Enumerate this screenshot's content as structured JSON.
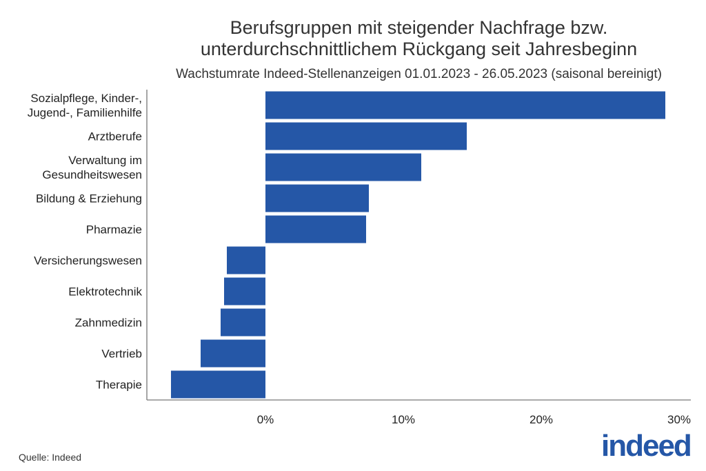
{
  "chart_data": {
    "type": "bar",
    "orientation": "horizontal",
    "title": "Berufsgruppen mit steigender Nachfrage bzw. unterdurchschnittlichem Rückgang seit Jahresbeginn",
    "title_lines": [
      "Berufsgruppen mit steigender Nachfrage bzw.",
      "unterdurchschnittlichem Rückgang seit Jahresbeginn"
    ],
    "subtitle": "Wachstumrate Indeed-Stellenanzeigen 01.01.2023 - 26.05.2023 (saisonal bereinigt)",
    "categories": [
      [
        "Sozialpflege, Kinder-,",
        "Jugend-, Familienhilfe"
      ],
      [
        "Arztberufe"
      ],
      [
        "Verwaltung im",
        "Gesundheitswesen"
      ],
      [
        "Bildung & Erziehung"
      ],
      [
        "Pharmazie"
      ],
      [
        "Versicherungswesen"
      ],
      [
        "Elektrotechnik"
      ],
      [
        "Zahnmedizin"
      ],
      [
        "Vertrieb"
      ],
      [
        "Therapie"
      ]
    ],
    "values": [
      29.0,
      14.6,
      11.3,
      7.5,
      7.3,
      -2.8,
      -3.0,
      -3.25,
      -4.7,
      -6.85
    ],
    "unit": "%",
    "xlim": [
      -8.6,
      30.85
    ],
    "xticks": [
      0,
      10,
      20,
      30
    ],
    "xtick_labels": [
      "0%",
      "10%",
      "20%",
      "30%"
    ],
    "grid": false,
    "bar_color": "#2557a7"
  },
  "footer": {
    "source": "Quelle: Indeed",
    "logo": "indeed"
  }
}
